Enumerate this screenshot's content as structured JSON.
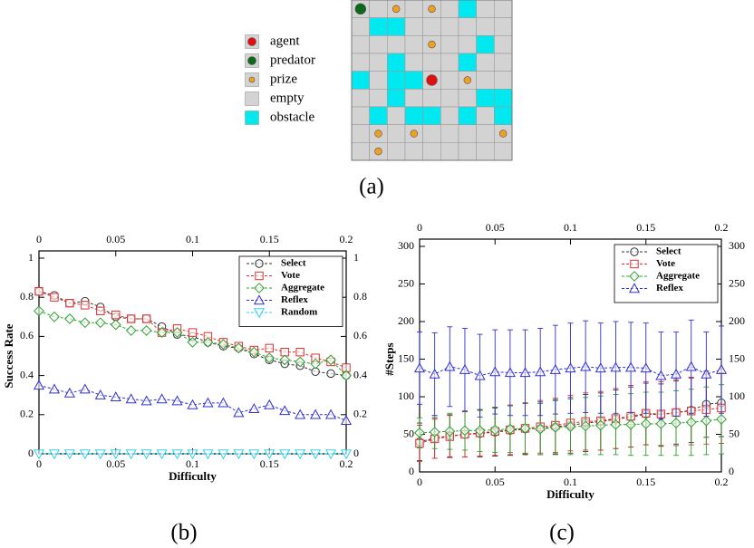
{
  "figure_a": {
    "caption": "(a)",
    "legend": [
      {
        "name": "agent",
        "color": "#e01010",
        "marker": "large-circle"
      },
      {
        "name": "predator",
        "color": "#0a6a1a",
        "marker": "large-circle"
      },
      {
        "name": "prize",
        "color": "#f0a020",
        "marker": "small-circle"
      },
      {
        "name": "empty",
        "color": "#d3d3d3",
        "marker": "square"
      },
      {
        "name": "obstacle",
        "color": "#00e8f0",
        "marker": "square"
      }
    ],
    "grid": [
      [
        "predator",
        "empty",
        "prize",
        "empty",
        "prize",
        "empty",
        "obstacle",
        "empty",
        "empty"
      ],
      [
        "empty",
        "obstacle",
        "obstacle",
        "empty",
        "empty",
        "empty",
        "empty",
        "empty",
        "empty"
      ],
      [
        "empty",
        "empty",
        "empty",
        "empty",
        "prize",
        "empty",
        "empty",
        "obstacle",
        "empty"
      ],
      [
        "empty",
        "empty",
        "obstacle",
        "empty",
        "empty",
        "empty",
        "obstacle",
        "empty",
        "empty"
      ],
      [
        "obstacle",
        "empty",
        "obstacle",
        "obstacle",
        "agent",
        "empty",
        "prize",
        "empty",
        "empty"
      ],
      [
        "empty",
        "empty",
        "obstacle",
        "empty",
        "empty",
        "empty",
        "empty",
        "obstacle",
        "obstacle"
      ],
      [
        "empty",
        "obstacle",
        "empty",
        "obstacle",
        "obstacle",
        "empty",
        "obstacle",
        "empty",
        "obstacle"
      ],
      [
        "empty",
        "prize",
        "empty",
        "prize",
        "empty",
        "empty",
        "empty",
        "empty",
        "prize"
      ],
      [
        "empty",
        "prize",
        "empty",
        "empty",
        "empty",
        "empty",
        "empty",
        "empty",
        "empty"
      ]
    ]
  },
  "chart_data": [
    {
      "type": "line",
      "caption": "(b)",
      "xlabel": "Difficulty",
      "ylabel": "Success Rate",
      "x": [
        0,
        0.01,
        0.02,
        0.03,
        0.04,
        0.05,
        0.06,
        0.07,
        0.08,
        0.09,
        0.1,
        0.11,
        0.12,
        0.13,
        0.14,
        0.15,
        0.16,
        0.17,
        0.18,
        0.19,
        0.2
      ],
      "xlim": [
        0,
        0.2
      ],
      "xticks": [
        0,
        0.05,
        0.1,
        0.15,
        0.2
      ],
      "ylim": [
        0,
        1
      ],
      "yticks": [
        0,
        0.2,
        0.4,
        0.6,
        0.8,
        1
      ],
      "legend": "upper right",
      "series": [
        {
          "name": "Select",
          "color": "#333333",
          "marker": "circle",
          "values": [
            0.83,
            0.81,
            0.77,
            0.78,
            0.75,
            0.7,
            0.69,
            0.69,
            0.65,
            0.61,
            0.6,
            0.57,
            0.55,
            0.54,
            0.51,
            0.48,
            0.46,
            0.45,
            0.42,
            0.41,
            0.4
          ]
        },
        {
          "name": "Vote",
          "color": "#e03030",
          "marker": "square",
          "values": [
            0.83,
            0.8,
            0.77,
            0.76,
            0.73,
            0.71,
            0.69,
            0.69,
            0.62,
            0.64,
            0.62,
            0.6,
            0.57,
            0.55,
            0.53,
            0.54,
            0.52,
            0.52,
            0.49,
            0.47,
            0.44
          ]
        },
        {
          "name": "Aggregate",
          "color": "#30a030",
          "marker": "diamond",
          "values": [
            0.73,
            0.7,
            0.69,
            0.67,
            0.67,
            0.66,
            0.63,
            0.63,
            0.62,
            0.62,
            0.57,
            0.57,
            0.56,
            0.54,
            0.52,
            0.49,
            0.48,
            0.47,
            0.46,
            0.48,
            0.4
          ]
        },
        {
          "name": "Reflex",
          "color": "#3030d0",
          "marker": "triangle-up",
          "values": [
            0.35,
            0.33,
            0.31,
            0.33,
            0.3,
            0.29,
            0.28,
            0.27,
            0.28,
            0.27,
            0.25,
            0.26,
            0.26,
            0.21,
            0.23,
            0.25,
            0.22,
            0.2,
            0.2,
            0.2,
            0.17
          ]
        },
        {
          "name": "Random",
          "color": "#30d0f0",
          "marker": "triangle-down",
          "values": [
            0,
            0,
            0,
            0,
            0,
            0,
            0,
            0,
            0,
            0,
            0,
            0,
            0,
            0,
            0,
            0,
            0,
            0,
            0,
            0,
            0
          ]
        }
      ]
    },
    {
      "type": "line",
      "caption": "(c)",
      "xlabel": "Difficulty",
      "ylabel": "#Steps",
      "x": [
        0,
        0.01,
        0.02,
        0.03,
        0.04,
        0.05,
        0.06,
        0.07,
        0.08,
        0.09,
        0.1,
        0.11,
        0.12,
        0.13,
        0.14,
        0.15,
        0.16,
        0.17,
        0.18,
        0.19,
        0.2
      ],
      "xlim": [
        0,
        0.2
      ],
      "xticks": [
        0,
        0.05,
        0.1,
        0.15,
        0.2
      ],
      "ylim": [
        0,
        300
      ],
      "yticks": [
        0,
        50,
        100,
        150,
        200,
        250,
        300
      ],
      "legend": "upper right",
      "series": [
        {
          "name": "Select",
          "color": "#333333",
          "marker": "circle",
          "values": [
            40,
            45,
            48,
            50,
            51,
            53,
            55,
            57,
            58,
            60,
            62,
            65,
            67,
            70,
            73,
            77,
            76,
            79,
            82,
            90,
            92
          ],
          "errors": [
            25,
            27,
            28,
            30,
            31,
            32,
            33,
            34,
            35,
            36,
            37,
            38,
            38,
            39,
            40,
            41,
            41,
            42,
            43,
            44,
            45
          ]
        },
        {
          "name": "Vote",
          "color": "#e03030",
          "marker": "square",
          "values": [
            38,
            44,
            47,
            50,
            52,
            54,
            56,
            58,
            60,
            62,
            65,
            67,
            68,
            71,
            74,
            78,
            77,
            79,
            81,
            83,
            85
          ],
          "errors": [
            24,
            26,
            28,
            30,
            31,
            32,
            33,
            34,
            35,
            36,
            37,
            38,
            39,
            40,
            41,
            42,
            43,
            44,
            45,
            46,
            47
          ]
        },
        {
          "name": "Aggregate",
          "color": "#30a030",
          "marker": "diamond",
          "values": [
            52,
            53,
            54,
            55,
            55,
            56,
            57,
            58,
            57,
            59,
            60,
            61,
            62,
            63,
            63,
            64,
            64,
            65,
            66,
            68,
            70
          ],
          "errors": [
            20,
            22,
            24,
            26,
            28,
            30,
            31,
            33,
            34,
            36,
            37,
            38,
            39,
            40,
            41,
            42,
            42,
            43,
            44,
            45,
            46
          ]
        },
        {
          "name": "Reflex",
          "color": "#3030d0",
          "marker": "triangle-up",
          "values": [
            138,
            130,
            140,
            136,
            128,
            133,
            132,
            132,
            133,
            136,
            138,
            140,
            138,
            139,
            139,
            138,
            128,
            130,
            140,
            130,
            136
          ],
          "errors": [
            48,
            55,
            53,
            55,
            55,
            56,
            57,
            57,
            58,
            59,
            60,
            61,
            60,
            61,
            60,
            60,
            58,
            56,
            62,
            56,
            58
          ]
        }
      ]
    }
  ]
}
